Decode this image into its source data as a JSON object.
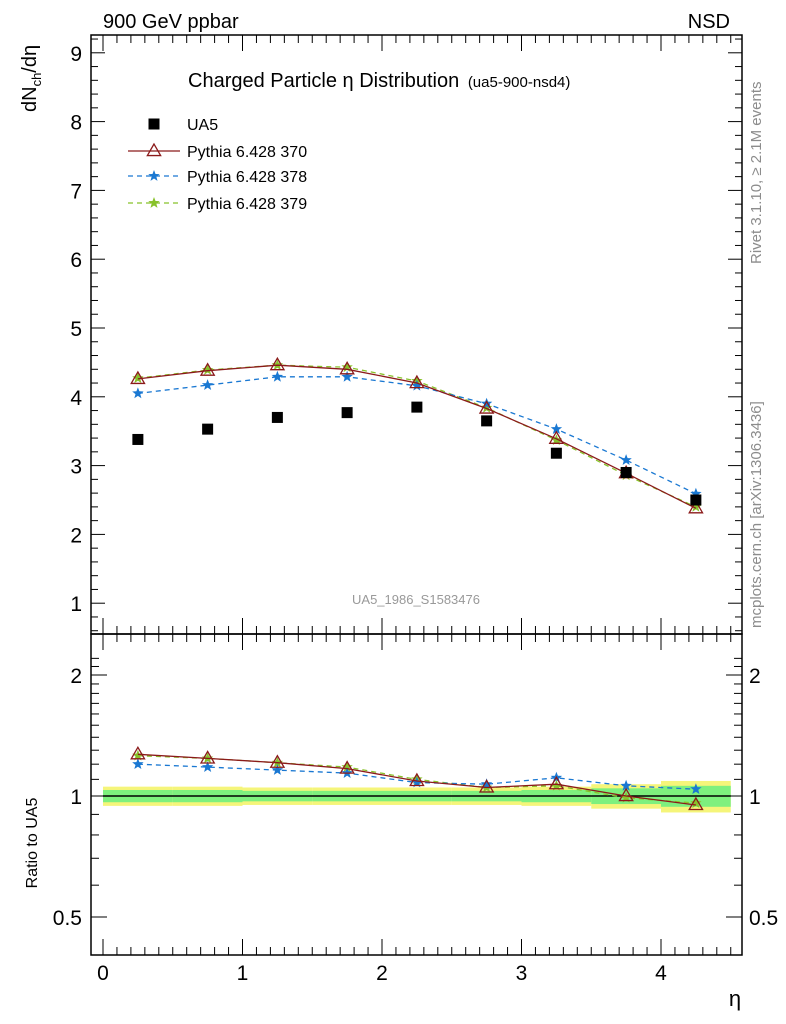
{
  "header": {
    "left": "900 GeV ppbar",
    "right": "NSD"
  },
  "side_labels": {
    "rivet": "Rivet 3.1.10, ≥ 2.1M events",
    "mcplots": "mcplots.cern.ch [arXiv:1306.3436]"
  },
  "watermark": "UA5_1986_S1583476",
  "colors": {
    "ua5": "#000000",
    "p370": "#8b1a1a",
    "p378": "#1a78d2",
    "p379": "#88c22a",
    "band_inner": "#7ef07e",
    "band_outer": "#f5f57a"
  },
  "chart_data": [
    {
      "type": "line",
      "title": "Charged Particle η Distribution",
      "title_tag": "(ua5-900-nsd4)",
      "ylabel": "dN_ch/dη",
      "xlim": [
        -0.1,
        4.6
      ],
      "ylim": [
        0.5,
        9.3
      ],
      "yticks": [
        "1",
        "2",
        "3",
        "4",
        "5",
        "6",
        "7",
        "8",
        "9"
      ],
      "grid": false,
      "legend_position": "top-left",
      "x": [
        0.25,
        0.75,
        1.25,
        1.75,
        2.25,
        2.75,
        3.25,
        3.75,
        4.25
      ],
      "series": [
        {
          "name": "UA5",
          "marker": "square",
          "values": [
            3.38,
            3.53,
            3.7,
            3.77,
            3.85,
            3.65,
            3.18,
            2.9,
            2.5
          ]
        },
        {
          "name": "Pythia 6.428 370",
          "marker": "triangle",
          "values": [
            4.26,
            4.38,
            4.46,
            4.4,
            4.2,
            3.83,
            3.39,
            2.89,
            2.38
          ]
        },
        {
          "name": "Pythia 6.428 378",
          "marker": "star",
          "values": [
            4.05,
            4.17,
            4.29,
            4.29,
            4.16,
            3.9,
            3.53,
            3.08,
            2.59
          ]
        },
        {
          "name": "Pythia 6.428 379",
          "marker": "star",
          "values": [
            4.27,
            4.39,
            4.46,
            4.43,
            4.23,
            3.84,
            3.37,
            2.86,
            2.4
          ]
        }
      ]
    },
    {
      "type": "line",
      "xlabel": "η",
      "ylabel": "Ratio to UA5",
      "xlim": [
        -0.1,
        4.6
      ],
      "ylim": [
        0.4,
        2.3
      ],
      "yscale": "log",
      "xticks": [
        "0",
        "1",
        "2",
        "3",
        "4"
      ],
      "yticks": [
        "0.5",
        "1",
        "2"
      ],
      "x": [
        0.25,
        0.75,
        1.25,
        1.75,
        2.25,
        2.75,
        3.25,
        3.75,
        4.25
      ],
      "band": {
        "x": [
          0,
          0.5,
          1.0,
          1.5,
          2.0,
          2.5,
          3.0,
          3.5,
          4.0,
          4.5
        ],
        "inner": [
          0.035,
          0.035,
          0.03,
          0.03,
          0.03,
          0.03,
          0.035,
          0.045,
          0.06
        ],
        "outer": [
          0.055,
          0.055,
          0.05,
          0.05,
          0.05,
          0.05,
          0.055,
          0.07,
          0.09
        ]
      },
      "series": [
        {
          "name": "Pythia 6.428 370",
          "values": [
            1.27,
            1.24,
            1.21,
            1.17,
            1.09,
            1.05,
            1.07,
            1.0,
            0.95
          ]
        },
        {
          "name": "Pythia 6.428 378",
          "values": [
            1.2,
            1.18,
            1.16,
            1.14,
            1.08,
            1.07,
            1.11,
            1.06,
            1.04
          ]
        },
        {
          "name": "Pythia 6.428 379",
          "values": [
            1.26,
            1.24,
            1.21,
            1.18,
            1.1,
            1.05,
            1.06,
            0.99,
            0.96
          ]
        }
      ]
    }
  ]
}
